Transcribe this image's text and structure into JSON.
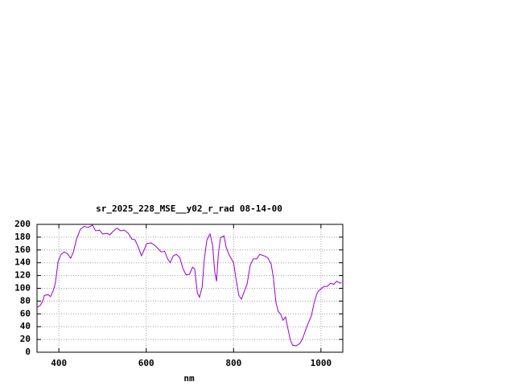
{
  "chart_data": {
    "type": "line",
    "title": "sr_2025_228_MSE__y02_r_rad 08-14-00",
    "x_label": "nm",
    "xlim": [
      350,
      1050
    ],
    "xticks": [
      400,
      600,
      800,
      1000
    ],
    "ylim": [
      0,
      200
    ],
    "yticks": [
      0,
      20,
      40,
      60,
      80,
      100,
      120,
      140,
      160,
      180,
      200
    ],
    "grid": true,
    "x": [
      350,
      357,
      363,
      367,
      376,
      381,
      387,
      392,
      398,
      405,
      412,
      420,
      427,
      433,
      440,
      449,
      458,
      467,
      477,
      484,
      493,
      500,
      510,
      517,
      524,
      533,
      541,
      550,
      559,
      567,
      574,
      581,
      589,
      594,
      601,
      611,
      620,
      627,
      634,
      642,
      649,
      655,
      662,
      669,
      677,
      684,
      691,
      699,
      706,
      711,
      717,
      722,
      728,
      733,
      739,
      746,
      752,
      757,
      761,
      765,
      770,
      778,
      783,
      790,
      800,
      805,
      812,
      818,
      825,
      831,
      838,
      845,
      853,
      860,
      869,
      878,
      886,
      891,
      897,
      902,
      908,
      913,
      919,
      924,
      930,
      935,
      943,
      952,
      959,
      965,
      970,
      978,
      985,
      992,
      1000,
      1007,
      1014,
      1022,
      1029,
      1036,
      1044,
      1047
    ],
    "series": [
      {
        "color": "#9400d3",
        "values": [
          70,
          73,
          80,
          89,
          90,
          87,
          96,
          108,
          141,
          153,
          157,
          154,
          147,
          156,
          176,
          192,
          197,
          195,
          199,
          190,
          191,
          185,
          186,
          184,
          189,
          194,
          190,
          191,
          186,
          177,
          176,
          166,
          151,
          158,
          170,
          171,
          167,
          162,
          157,
          158,
          146,
          140,
          151,
          153,
          148,
          131,
          121,
          122,
          133,
          130,
          93,
          86,
          102,
          146,
          176,
          185,
          167,
          125,
          111,
          153,
          179,
          182,
          164,
          152,
          140,
          117,
          89,
          83,
          96,
          107,
          136,
          146,
          146,
          153,
          151,
          148,
          138,
          117,
          78,
          64,
          59,
          50,
          55,
          38,
          19,
          11,
          10,
          14,
          23,
          35,
          44,
          57,
          79,
          94,
          99,
          103,
          103,
          108,
          106,
          111,
          108,
          109
        ]
      }
    ]
  }
}
